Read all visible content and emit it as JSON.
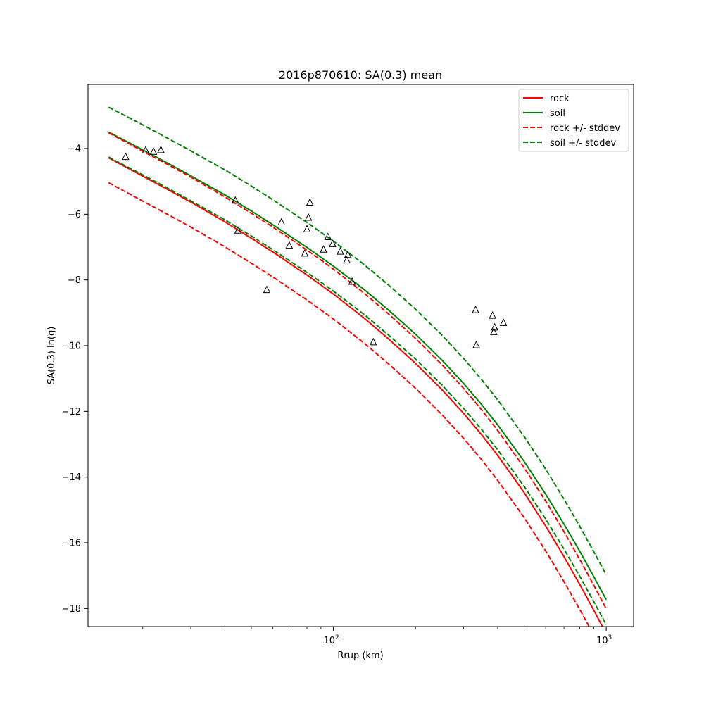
{
  "chart_data": {
    "type": "line",
    "title": "2016p870610: SA(0.3) mean",
    "xlabel": "Rrup (km)",
    "ylabel": "SA(0.3) ln(g)",
    "xscale": "log",
    "xlim": [
      12.6,
      1260
    ],
    "ylim": [
      -18.55,
      -2.05
    ],
    "x_major_ticks": [
      100,
      1000
    ],
    "x_major_tick_labels": [
      "10",
      "10"
    ],
    "x_tick_exponents": [
      "2",
      "3"
    ],
    "x_minor_ticks": [
      20,
      30,
      40,
      50,
      60,
      70,
      80,
      90,
      200,
      300,
      400,
      500,
      600,
      700,
      800,
      900
    ],
    "y_ticks": [
      -4,
      -6,
      -8,
      -10,
      -12,
      -14,
      -16,
      -18
    ],
    "y_tick_labels": [
      "−4",
      "−6",
      "−8",
      "−10",
      "−12",
      "−14",
      "−16",
      "−18"
    ],
    "grid": false,
    "legend_position": "top-right",
    "curve_x": [
      15,
      20,
      25,
      30,
      40,
      50,
      60,
      80,
      100,
      130,
      160,
      200,
      250,
      300,
      350,
      400,
      500,
      600,
      700,
      800,
      900,
      1000
    ],
    "series": [
      {
        "name": "rock",
        "color": "#ff0000",
        "style": "solid",
        "values": [
          -4.28,
          -4.84,
          -5.27,
          -5.63,
          -6.23,
          -6.73,
          -7.15,
          -7.85,
          -8.43,
          -9.17,
          -9.81,
          -10.54,
          -11.34,
          -12.06,
          -12.72,
          -13.34,
          -14.47,
          -15.49,
          -16.42,
          -17.27,
          -18.05,
          -18.77
        ]
      },
      {
        "name": "soil",
        "color": "#008000",
        "style": "solid",
        "values": [
          -3.5,
          -4.04,
          -4.47,
          -4.83,
          -5.41,
          -5.9,
          -6.32,
          -7.01,
          -7.58,
          -8.3,
          -8.93,
          -9.65,
          -10.44,
          -11.15,
          -11.8,
          -12.41,
          -13.52,
          -14.52,
          -15.43,
          -16.26,
          -17.03,
          -17.73
        ]
      },
      {
        "name": "rock +/- stddev",
        "color": "#ff0000",
        "style": "dashed",
        "values": [
          -3.52,
          -4.08,
          -4.51,
          -4.87,
          -5.47,
          -5.97,
          -6.39,
          -7.09,
          -7.67,
          -8.41,
          -9.05,
          -9.78,
          -10.58,
          -11.3,
          -11.96,
          -12.58,
          -13.71,
          -14.73,
          -15.66,
          -16.51,
          -17.29,
          -18.01
        ]
      },
      {
        "name": "",
        "color": "#ff0000",
        "style": "dashed",
        "values": [
          -5.04,
          -5.6,
          -6.03,
          -6.39,
          -6.99,
          -7.49,
          -7.91,
          -8.61,
          -9.19,
          -9.93,
          -10.57,
          -11.3,
          -12.1,
          -12.82,
          -13.48,
          -14.1,
          -15.23,
          -16.25,
          -17.18,
          -18.03,
          -18.81,
          -19.53
        ]
      },
      {
        "name": "soil +/- stddev",
        "color": "#008000",
        "style": "dashed",
        "values": [
          -2.74,
          -3.28,
          -3.71,
          -4.07,
          -4.65,
          -5.14,
          -5.56,
          -6.25,
          -6.82,
          -7.54,
          -8.17,
          -8.89,
          -9.68,
          -10.39,
          -11.04,
          -11.65,
          -12.76,
          -13.76,
          -14.67,
          -15.5,
          -16.27,
          -16.97
        ]
      },
      {
        "name": "",
        "color": "#008000",
        "style": "dashed",
        "values": [
          -4.26,
          -4.8,
          -5.23,
          -5.59,
          -6.17,
          -6.66,
          -7.08,
          -7.77,
          -8.34,
          -9.06,
          -9.69,
          -10.41,
          -11.2,
          -11.91,
          -12.56,
          -13.17,
          -14.28,
          -15.28,
          -16.19,
          -17.02,
          -17.79,
          -18.49
        ]
      }
    ],
    "observations": {
      "marker": "triangle",
      "points": [
        [
          17.3,
          -4.25
        ],
        [
          20.5,
          -4.05
        ],
        [
          21.9,
          -4.09
        ],
        [
          23.3,
          -4.04
        ],
        [
          43.7,
          -5.58
        ],
        [
          44.7,
          -6.49
        ],
        [
          57.0,
          -8.3
        ],
        [
          64.5,
          -6.24
        ],
        [
          68.9,
          -6.95
        ],
        [
          78.5,
          -7.19
        ],
        [
          80.0,
          -6.45
        ],
        [
          81.0,
          -6.1
        ],
        [
          82.0,
          -5.64
        ],
        [
          92.0,
          -7.07
        ],
        [
          95.5,
          -6.69
        ],
        [
          99.3,
          -6.9
        ],
        [
          106.0,
          -7.13
        ],
        [
          112.0,
          -7.4
        ],
        [
          113.0,
          -7.23
        ],
        [
          117.0,
          -8.05
        ],
        [
          140.0,
          -9.89
        ],
        [
          332.0,
          -8.91
        ],
        [
          334.0,
          -9.98
        ],
        [
          383.0,
          -9.08
        ],
        [
          387.0,
          -9.58
        ],
        [
          390.0,
          -9.44
        ],
        [
          420.0,
          -9.3
        ]
      ]
    }
  }
}
